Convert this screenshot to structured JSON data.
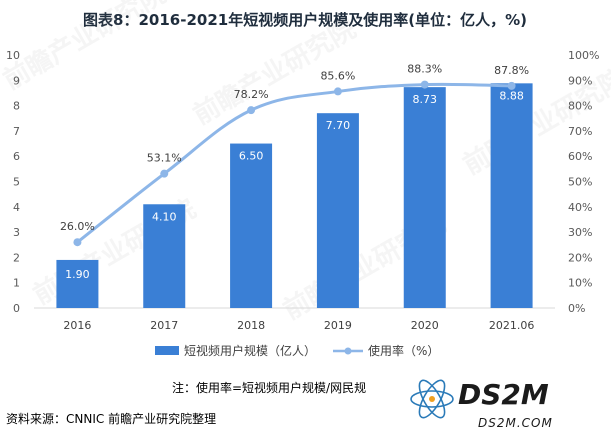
{
  "chart_data": {
    "type": "bar",
    "title": "图表8：2016-2021年短视频用户规模及使用率(单位：亿人，%)",
    "categories": [
      "2016",
      "2017",
      "2018",
      "2019",
      "2020",
      "2021.06"
    ],
    "series": [
      {
        "name": "短视频用户规模（亿人）",
        "type": "bar",
        "axis": "left",
        "values": [
          1.9,
          4.1,
          6.5,
          7.7,
          8.73,
          8.88
        ],
        "labels": [
          "1.90",
          "4.10",
          "6.50",
          "7.70",
          "8.73",
          "8.88"
        ],
        "color": "#3a7fd5"
      },
      {
        "name": "使用率（%）",
        "type": "line",
        "axis": "right",
        "values": [
          26.0,
          53.1,
          78.2,
          85.6,
          88.3,
          87.8
        ],
        "labels": [
          "26.0%",
          "53.1%",
          "78.2%",
          "85.6%",
          "88.3%",
          "87.8%"
        ],
        "color": "#8db6e8"
      }
    ],
    "ylim_left": [
      0,
      10
    ],
    "yticks_left": [
      "0",
      "1",
      "2",
      "3",
      "4",
      "5",
      "6",
      "7",
      "8",
      "9",
      "10"
    ],
    "ylim_right": [
      0,
      100
    ],
    "yticks_right": [
      "0%",
      "10%",
      "20%",
      "30%",
      "40%",
      "50%",
      "60%",
      "70%",
      "80%",
      "90%",
      "100%"
    ],
    "grid": false,
    "legend_position": "bottom"
  },
  "note": "注：使用率=短视频用户规模/网民规",
  "source": "资料来源：CNNIC 前瞻产业研究院整理",
  "watermark": "前瞻产业研究院",
  "logo": {
    "brand": "DS2M",
    "url": "DS2M.COM"
  }
}
